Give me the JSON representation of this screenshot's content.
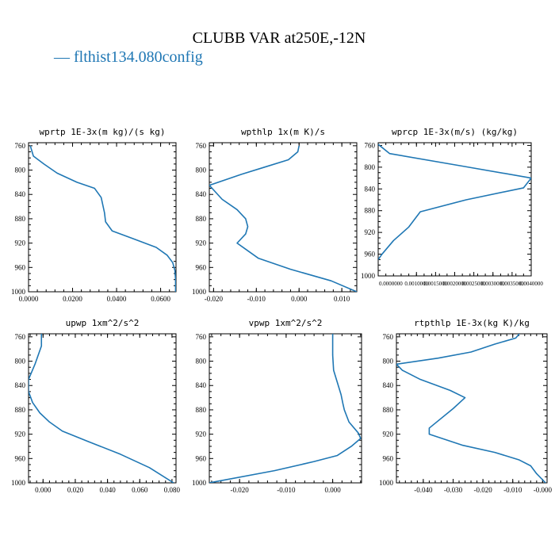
{
  "figure": {
    "title": "CLUBB VAR at250E,-12N",
    "legend": {
      "line_text": "— flthist134.080config",
      "color": "#1f77b4"
    }
  },
  "chart_data": [
    {
      "type": "line",
      "title": "wprtp  1E-3x(m kg)/(s kg)",
      "x_ticks": [
        "0.0000",
        "0.0200",
        "0.0400",
        "0.0600"
      ],
      "x_tick_values": [
        0,
        0.02,
        0.04,
        0.06
      ],
      "xlim": [
        0,
        0.067
      ],
      "y_ticks": [
        "760",
        "800",
        "840",
        "880",
        "920",
        "960",
        "1000"
      ],
      "y_tick_values": [
        760,
        800,
        840,
        880,
        920,
        960,
        1000
      ],
      "ylim": [
        1000,
        755
      ],
      "series": [
        {
          "x": [
            0.0008,
            0.0022,
            0.007,
            0.013,
            0.022,
            0.03,
            0.033,
            0.0345,
            0.035,
            0.038,
            0.047,
            0.058,
            0.063,
            0.0655,
            0.0665,
            0.0668,
            0.0668
          ],
          "y": [
            760,
            777,
            790,
            805,
            820,
            830,
            845,
            870,
            885,
            900,
            912,
            927,
            940,
            952,
            965,
            980,
            1000
          ]
        }
      ]
    },
    {
      "type": "line",
      "title": "wpthlp  1x(m K)/s",
      "x_ticks": [
        "-0.020",
        "-0.010",
        "0.000",
        "0.010"
      ],
      "x_tick_values": [
        -0.02,
        -0.01,
        0,
        0.01
      ],
      "xlim": [
        -0.021,
        0.0135
      ],
      "y_ticks": [
        "760",
        "800",
        "840",
        "880",
        "920",
        "960",
        "1000"
      ],
      "y_tick_values": [
        760,
        800,
        840,
        880,
        920,
        960,
        1000
      ],
      "ylim": [
        1000,
        755
      ],
      "series": [
        {
          "x": [
            0.0,
            -0.0003,
            -0.0025,
            -0.008,
            -0.0135,
            -0.021,
            -0.018,
            -0.0145,
            -0.0125,
            -0.012,
            -0.0125,
            -0.0145,
            -0.0125,
            -0.0095,
            -0.002,
            0.0075,
            0.0135
          ],
          "y": [
            760,
            770,
            783,
            795,
            807,
            825,
            848,
            865,
            880,
            893,
            905,
            920,
            930,
            945,
            963,
            982,
            1000
          ]
        }
      ]
    },
    {
      "type": "line",
      "title": "wprcp  1E-3x(m/s) (kg/kg)",
      "x_ticks": [
        "0.0000000",
        "0.0010000",
        "0.0015000",
        "0.0020000",
        "0.0025000",
        "0.0030000",
        "0.0035000",
        "0.0040000"
      ],
      "x_tick_values": [
        0,
        0.001,
        0.0015,
        0.002,
        0.0025,
        0.003,
        0.0035,
        0.004
      ],
      "xlim": [
        0,
        0.004
      ],
      "y_ticks": [
        "760",
        "800",
        "840",
        "880",
        "920",
        "960",
        "1000"
      ],
      "y_tick_values": [
        760,
        800,
        840,
        880,
        920,
        960,
        1000
      ],
      "ylim": [
        1000,
        755
      ],
      "series": [
        {
          "x": [
            0.0,
            0.0003,
            0.0022,
            0.004,
            0.0038,
            0.0023,
            0.0011,
            0.0008,
            0.0004,
            0.0001,
            0.0
          ],
          "y": [
            758,
            775,
            798,
            820,
            838,
            860,
            882,
            910,
            935,
            960,
            970
          ]
        }
      ]
    },
    {
      "type": "line",
      "title": "upwp  1xm^2/s^2",
      "x_ticks": [
        "0.000",
        "0.020",
        "0.040",
        "0.060",
        "0.080"
      ],
      "x_tick_values": [
        0,
        0.02,
        0.04,
        0.06,
        0.08
      ],
      "xlim": [
        -0.009,
        0.0825
      ],
      "y_ticks": [
        "760",
        "800",
        "840",
        "880",
        "920",
        "960",
        "1000"
      ],
      "y_tick_values": [
        760,
        800,
        840,
        880,
        920,
        960,
        1000
      ],
      "ylim": [
        1000,
        755
      ],
      "series": [
        {
          "x": [
            -0.001,
            -0.001,
            -0.005,
            -0.009,
            -0.009,
            -0.0065,
            -0.002,
            0.004,
            0.012,
            0.028,
            0.048,
            0.066,
            0.081
          ],
          "y": [
            755,
            775,
            805,
            830,
            850,
            868,
            885,
            900,
            915,
            932,
            953,
            975,
            1000
          ]
        }
      ]
    },
    {
      "type": "line",
      "title": "vpwp  1xm^2/s^2",
      "x_ticks": [
        "-0.020",
        "-0.010",
        "0.000"
      ],
      "x_tick_values": [
        -0.02,
        -0.01,
        0
      ],
      "xlim": [
        -0.0265,
        0.0062
      ],
      "y_ticks": [
        "760",
        "800",
        "840",
        "880",
        "920",
        "960",
        "1000"
      ],
      "y_tick_values": [
        760,
        800,
        840,
        880,
        920,
        960,
        1000
      ],
      "ylim": [
        1000,
        755
      ],
      "series": [
        {
          "x": [
            0.0,
            0.0,
            0.0002,
            0.001,
            0.0018,
            0.0022,
            0.0025,
            0.0035,
            0.0055,
            0.006,
            0.004,
            0.001,
            -0.004,
            -0.0125,
            -0.0265
          ],
          "y": [
            755,
            790,
            815,
            835,
            855,
            870,
            880,
            900,
            918,
            927,
            940,
            955,
            965,
            980,
            1000
          ]
        }
      ]
    },
    {
      "type": "line",
      "title": "rtpthlp  1E-3x(kg K)/kg",
      "x_ticks": [
        "-0.040",
        "-0.030",
        "-0.020",
        "-0.010",
        "-0.000"
      ],
      "x_tick_values": [
        -0.04,
        -0.03,
        -0.02,
        -0.01,
        0
      ],
      "xlim": [
        -0.049,
        0.0015
      ],
      "y_ticks": [
        "760",
        "800",
        "840",
        "880",
        "920",
        "960",
        "1000"
      ],
      "y_tick_values": [
        760,
        800,
        840,
        880,
        920,
        960,
        1000
      ],
      "ylim": [
        1000,
        755
      ],
      "series": [
        {
          "x": [
            -0.0078,
            -0.009,
            -0.016,
            -0.024,
            -0.035,
            -0.049,
            -0.047,
            -0.041,
            -0.031,
            -0.026,
            -0.03,
            -0.038,
            -0.038,
            -0.027,
            -0.016,
            -0.008,
            -0.004,
            -0.002,
            0.001
          ],
          "y": [
            755,
            762,
            772,
            785,
            795,
            805,
            815,
            830,
            848,
            860,
            878,
            910,
            920,
            938,
            950,
            962,
            972,
            985,
            1000
          ]
        }
      ]
    }
  ]
}
